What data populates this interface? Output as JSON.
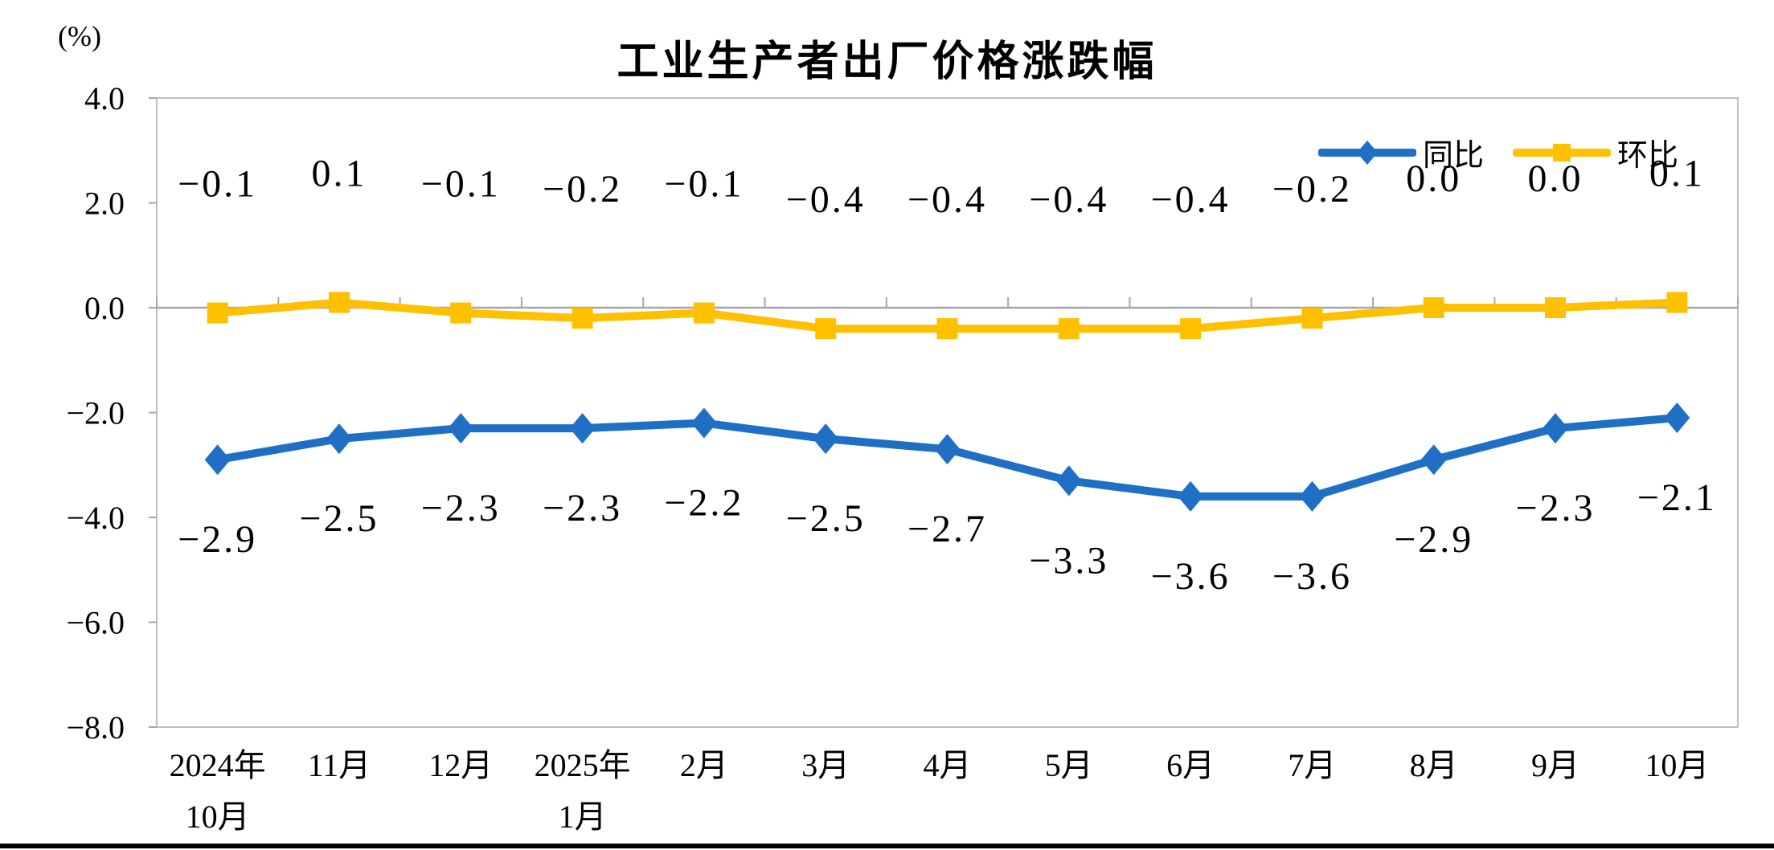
{
  "title": "工业生产者出厂价格涨跌幅",
  "y_axis_unit": "(%)",
  "colors": {
    "yoy": "#1F6FC5",
    "mom": "#FFC000",
    "plot_border": "#BFBFBF",
    "axis_line": "#A6A6A6",
    "text": "#000000",
    "divider": "#000000"
  },
  "legend": {
    "items": [
      {
        "label": "同比"
      },
      {
        "label": "环比"
      }
    ]
  },
  "chart_data": {
    "type": "line",
    "title": "工业生产者出厂价格涨跌幅",
    "ylabel": "(%)",
    "xlabel": "",
    "ylim": [
      -8.0,
      4.0
    ],
    "ytick_interval": 2.0,
    "ytick_labels": [
      "4.0",
      "2.0",
      "0.0",
      "-2.0",
      "-4.0",
      "-6.0",
      "-8.0"
    ],
    "grid": false,
    "legend_position": "top-right",
    "categories": [
      [
        "2024年",
        "10月"
      ],
      [
        "11月"
      ],
      [
        "12月"
      ],
      [
        "2025年",
        "1月"
      ],
      [
        "2月"
      ],
      [
        "3月"
      ],
      [
        "4月"
      ],
      [
        "5月"
      ],
      [
        "6月"
      ],
      [
        "7月"
      ],
      [
        "8月"
      ],
      [
        "9月"
      ],
      [
        "10月"
      ]
    ],
    "series": [
      {
        "key": "yoy",
        "name": "同比",
        "marker": "diamond",
        "color": "#1F6FC5",
        "label_position": "below",
        "values": [
          -2.9,
          -2.5,
          -2.3,
          -2.3,
          -2.2,
          -2.5,
          -2.7,
          -3.3,
          -3.6,
          -3.6,
          -2.9,
          -2.3,
          -2.1
        ]
      },
      {
        "key": "mom",
        "name": "环比",
        "marker": "square",
        "color": "#FFC000",
        "label_position": "above",
        "values": [
          -0.1,
          0.1,
          -0.1,
          -0.2,
          -0.1,
          -0.4,
          -0.4,
          -0.4,
          -0.4,
          -0.2,
          0.0,
          0.0,
          0.1
        ]
      }
    ]
  }
}
